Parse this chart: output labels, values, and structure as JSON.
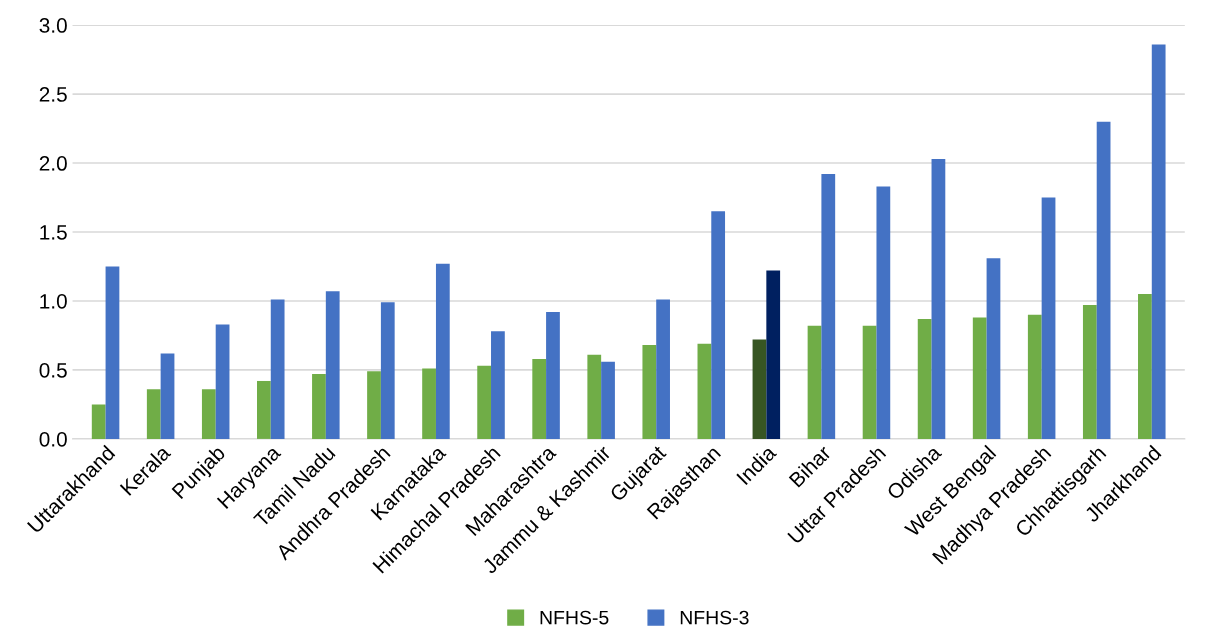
{
  "chart_data": {
    "type": "bar",
    "categories": [
      "Uttarakhand",
      "Kerala",
      "Punjab",
      "Haryana",
      "Tamil Nadu",
      "Andhra Pradesh",
      "Karnataka",
      "Himachal Pradesh",
      "Maharashtra",
      "Jammu & Kashmir",
      "Gujarat",
      "Rajasthan",
      "India",
      "Bihar",
      "Uttar Pradesh",
      "Odisha",
      "West Bengal",
      "Madhya Pradesh",
      "Chhattisgarh",
      "Jharkhand"
    ],
    "series": [
      {
        "name": "NFHS-5",
        "color": "#70ad47",
        "colors": [
          "#70ad47",
          "#70ad47",
          "#70ad47",
          "#70ad47",
          "#70ad47",
          "#70ad47",
          "#70ad47",
          "#70ad47",
          "#70ad47",
          "#70ad47",
          "#70ad47",
          "#70ad47",
          "#375623",
          "#70ad47",
          "#70ad47",
          "#70ad47",
          "#70ad47",
          "#70ad47",
          "#70ad47",
          "#70ad47"
        ],
        "values": [
          0.25,
          0.36,
          0.36,
          0.42,
          0.47,
          0.49,
          0.51,
          0.53,
          0.58,
          0.61,
          0.68,
          0.69,
          0.72,
          0.82,
          0.82,
          0.87,
          0.88,
          0.9,
          0.97,
          1.05
        ]
      },
      {
        "name": "NFHS-3",
        "color": "#4472c4",
        "colors": [
          "#4472c4",
          "#4472c4",
          "#4472c4",
          "#4472c4",
          "#4472c4",
          "#4472c4",
          "#4472c4",
          "#4472c4",
          "#4472c4",
          "#4472c4",
          "#4472c4",
          "#4472c4",
          "#002060",
          "#4472c4",
          "#4472c4",
          "#4472c4",
          "#4472c4",
          "#4472c4",
          "#4472c4",
          "#4472c4"
        ],
        "values": [
          1.25,
          0.62,
          0.83,
          1.01,
          1.07,
          0.99,
          1.27,
          0.78,
          0.92,
          0.56,
          1.01,
          1.65,
          1.22,
          1.92,
          1.83,
          2.03,
          1.31,
          1.75,
          2.3,
          2.86
        ]
      }
    ],
    "ylim": [
      0,
      3.0
    ],
    "yticks": [
      {
        "value": 0,
        "label": "0.0"
      },
      {
        "value": 0.5,
        "label": "0.5"
      },
      {
        "value": 1.0,
        "label": "1.0"
      },
      {
        "value": 1.5,
        "label": "1.5"
      },
      {
        "value": 2.0,
        "label": "2.0"
      },
      {
        "value": 2.5,
        "label": "2.5"
      },
      {
        "value": 3.0,
        "label": "3.0"
      }
    ],
    "grid": "y",
    "legend": "bottom"
  }
}
